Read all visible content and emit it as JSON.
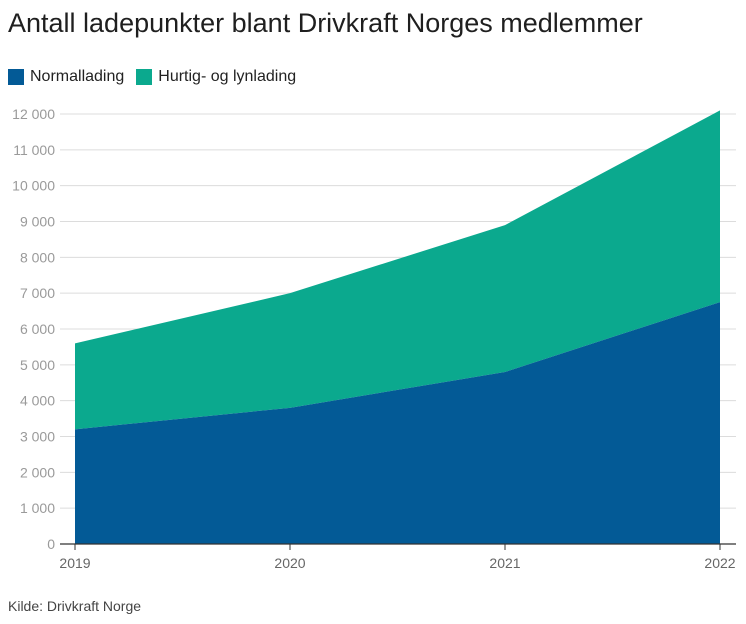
{
  "title": "Antall ladepunkter blant Drivkraft Norges medlemmer",
  "source": "Kilde: Drivkraft Norge",
  "colors": {
    "normal": "#035a96",
    "fast": "#0ba98e",
    "grid": "#dcdcdc",
    "tick": "#9a9a9a",
    "axis": "#333333"
  },
  "chart_data": {
    "type": "area",
    "stacked": true,
    "x": [
      "2019",
      "2020",
      "2021",
      "2022"
    ],
    "series": [
      {
        "name": "Normallading",
        "values": [
          3200,
          3800,
          4800,
          6750
        ]
      },
      {
        "name": "Hurtig- og lynlading",
        "values": [
          2400,
          3200,
          4100,
          5350
        ]
      }
    ],
    "ylim": [
      0,
      12000
    ],
    "yticks": [
      "0",
      "1 000",
      "2 000",
      "3 000",
      "4 000",
      "5 000",
      "6 000",
      "7 000",
      "8 000",
      "9 000",
      "10 000",
      "11 000",
      "12 000"
    ],
    "grid": true,
    "legend_position": "top-left"
  }
}
